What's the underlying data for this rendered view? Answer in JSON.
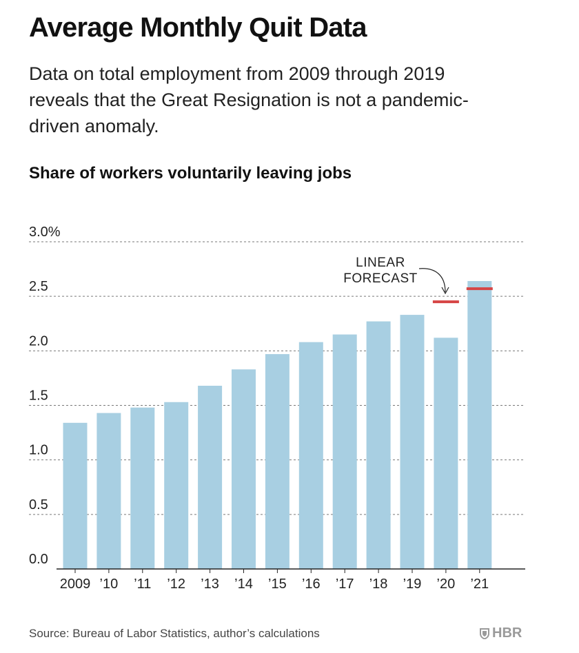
{
  "header": {
    "title": "Average Monthly Quit Data",
    "subtitle": "Data on total employment from 2009 through 2019 reveals that the Great Resignation is not a pandemic-driven anomaly."
  },
  "chart_data": {
    "type": "bar",
    "title": "Share of workers voluntarily leaving jobs",
    "xlabel": "",
    "ylabel": "",
    "categories": [
      "2009",
      "’10",
      "’11",
      "’12",
      "’13",
      "’14",
      "’15",
      "’16",
      "’17",
      "’18",
      "’19",
      "’20",
      "’21"
    ],
    "values": [
      1.34,
      1.43,
      1.48,
      1.53,
      1.68,
      1.83,
      1.97,
      2.08,
      2.15,
      2.27,
      2.33,
      2.12,
      2.64
    ],
    "ylim": [
      0,
      3.0
    ],
    "yticks": [
      0.0,
      0.5,
      1.0,
      1.5,
      2.0,
      2.5,
      3.0
    ],
    "ytick_labels": [
      "0.0",
      "0.5",
      "1.0",
      "1.5",
      "2.0",
      "2.5",
      "3.0%"
    ],
    "grid": true,
    "forecast": [
      {
        "category": "’20",
        "value": 2.45
      },
      {
        "category": "’21",
        "value": 2.57
      }
    ],
    "annotation": {
      "line1": "LINEAR",
      "line2": "FORECAST"
    },
    "colors": {
      "bar": "#a8cfe2",
      "forecast": "#d64545",
      "grid": "#777777",
      "axis": "#222222"
    }
  },
  "footer": {
    "source": "Source: Bureau of Labor Statistics, author’s calculations",
    "logo": "HBR"
  }
}
